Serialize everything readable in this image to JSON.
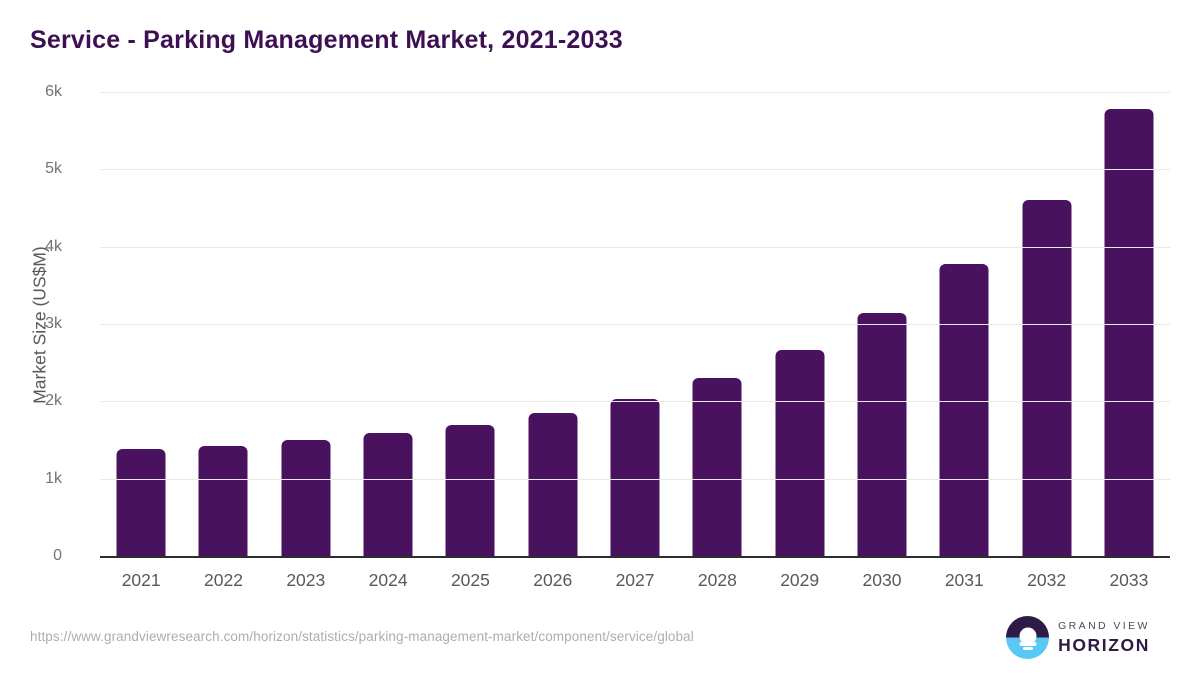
{
  "chart_data": {
    "type": "bar",
    "title": "Service - Parking Management Market, 2021-2033",
    "categories": [
      "2021",
      "2022",
      "2023",
      "2024",
      "2025",
      "2026",
      "2027",
      "2028",
      "2029",
      "2030",
      "2031",
      "2032",
      "2033"
    ],
    "values": [
      1385,
      1425,
      1500,
      1585,
      1690,
      1845,
      2030,
      2305,
      2660,
      3140,
      3775,
      4600,
      5775
    ],
    "xlabel": "",
    "ylabel": "Market Size (US$M)",
    "ylim": [
      0,
      6000
    ],
    "yticks": [
      {
        "value": 0,
        "label": "0"
      },
      {
        "value": 1000,
        "label": "1k"
      },
      {
        "value": 2000,
        "label": "2k"
      },
      {
        "value": 3000,
        "label": "3k"
      },
      {
        "value": 4000,
        "label": "4k"
      },
      {
        "value": 5000,
        "label": "5k"
      },
      {
        "value": 6000,
        "label": "6k"
      }
    ],
    "grid": "horizontal",
    "legend": false,
    "bar_color": "#48125e",
    "title_color": "#3d1053"
  },
  "footer": {
    "source_url": "https://www.grandviewresearch.com/horizon/statistics/parking-management-market/component/service/global",
    "logo": {
      "brand_top": "GRAND VIEW",
      "brand_bottom": "HORIZON",
      "circle_top_color": "#2e1a47",
      "circle_bottom_color": "#5ac8f5"
    }
  }
}
